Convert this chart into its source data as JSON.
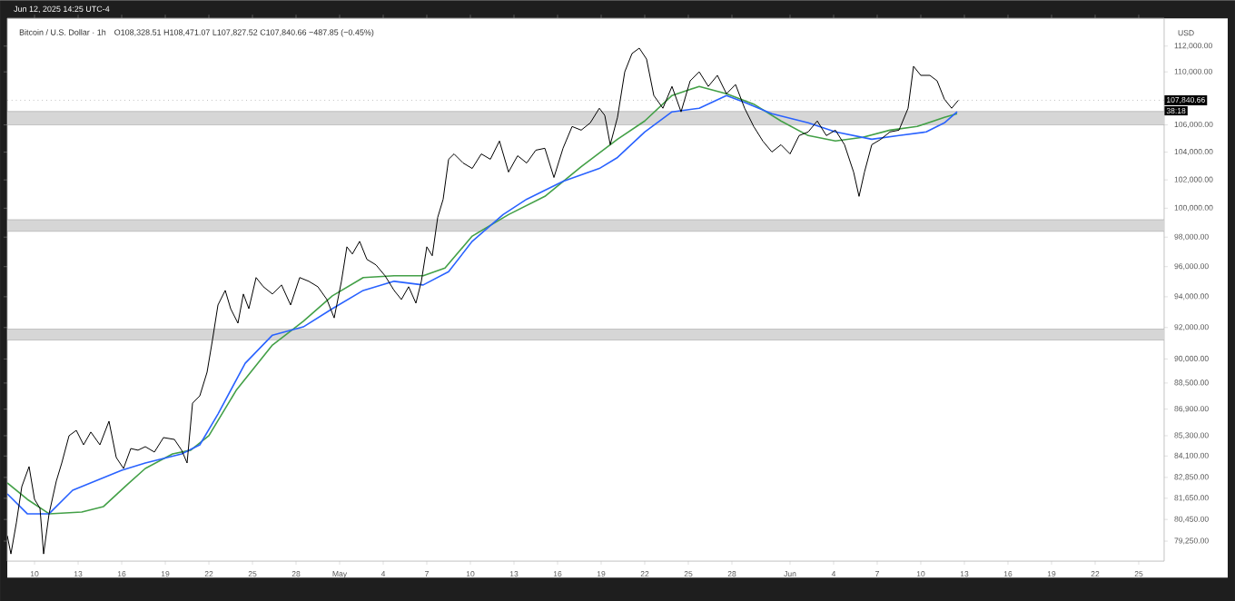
{
  "chart_data": {
    "type": "line",
    "title": "Bitcoin / U.S. Dollar · 1h",
    "subtitle": "O108,328.51 H108,471.07 L107,827.52 C107,840.66 −487.85 (−0.45%)",
    "ylabel": "USD",
    "annotations": [
      "Jun 12, 2025 14:25 UTC-4",
      "38:18"
    ],
    "log": "y",
    "marker": "none",
    "line_style": "solid",
    "xlim": [
      "2025-04-08T03:00",
      "2025-06-26T18:00"
    ],
    "ylim": [
      78150,
      114200
    ],
    "xticks": [
      {
        "value": "2025-04-10",
        "label": "10"
      },
      {
        "value": "2025-04-13",
        "label": "13"
      },
      {
        "value": "2025-04-16",
        "label": "16"
      },
      {
        "value": "2025-04-19",
        "label": "19"
      },
      {
        "value": "2025-04-22",
        "label": "22"
      },
      {
        "value": "2025-04-25",
        "label": "25"
      },
      {
        "value": "2025-04-28",
        "label": "28"
      },
      {
        "value": "2025-05-01",
        "label": "May"
      },
      {
        "value": "2025-05-04",
        "label": "4"
      },
      {
        "value": "2025-05-07",
        "label": "7"
      },
      {
        "value": "2025-05-10",
        "label": "10"
      },
      {
        "value": "2025-05-13",
        "label": "13"
      },
      {
        "value": "2025-05-16",
        "label": "16"
      },
      {
        "value": "2025-05-19",
        "label": "19"
      },
      {
        "value": "2025-05-22",
        "label": "22"
      },
      {
        "value": "2025-05-25",
        "label": "25"
      },
      {
        "value": "2025-05-28",
        "label": "28"
      },
      {
        "value": "2025-06-01",
        "label": "Jun"
      },
      {
        "value": "2025-06-04",
        "label": "4"
      },
      {
        "value": "2025-06-07",
        "label": "7"
      },
      {
        "value": "2025-06-10",
        "label": "10"
      },
      {
        "value": "2025-06-13",
        "label": "13"
      },
      {
        "value": "2025-06-16",
        "label": "16"
      },
      {
        "value": "2025-06-19",
        "label": "19"
      },
      {
        "value": "2025-06-22",
        "label": "22"
      },
      {
        "value": "2025-06-25",
        "label": "25"
      }
    ],
    "yticks": [
      {
        "value": 79250,
        "label": "79,250.00"
      },
      {
        "value": 80450,
        "label": "80,450.00"
      },
      {
        "value": 81650,
        "label": "81,650.00"
      },
      {
        "value": 82850,
        "label": "82,850.00"
      },
      {
        "value": 84100,
        "label": "84,100.00"
      },
      {
        "value": 85300,
        "label": "85,300.00"
      },
      {
        "value": 86900,
        "label": "86,900.00"
      },
      {
        "value": 88500,
        "label": "88,500.00"
      },
      {
        "value": 90000,
        "label": "90,000.00"
      },
      {
        "value": 92000,
        "label": "92,000.00"
      },
      {
        "value": 94000,
        "label": "94,000.00"
      },
      {
        "value": 96000,
        "label": "96,000.00"
      },
      {
        "value": 98000,
        "label": "98,000.00"
      },
      {
        "value": 100000,
        "label": "100,000.00"
      },
      {
        "value": 102000,
        "label": "102,000.00"
      },
      {
        "value": 104000,
        "label": "104,000.00"
      },
      {
        "value": 106000,
        "label": "106,000.00"
      },
      {
        "value": 110000,
        "label": "110,000.00"
      },
      {
        "value": 112000,
        "label": "112,000.00"
      }
    ],
    "bands": [
      {
        "axis": "y",
        "from": 106000,
        "to": 107000,
        "color": "#d6d6d6"
      },
      {
        "axis": "y",
        "from": 98400,
        "to": 99200,
        "color": "#d6d6d6"
      },
      {
        "axis": "y",
        "from": 91200,
        "to": 91900,
        "color": "#d6d6d6"
      }
    ],
    "ref_lines": [
      {
        "axis": "y",
        "value": 107840.66,
        "label": "107,840.66",
        "color": "#9e9e9e",
        "line_style": "dotted"
      }
    ],
    "series": [
      {
        "color": "#43a047",
        "x": [
          "2025-04-08T03:00",
          "2025-04-09T12:00",
          "2025-04-11T00:00",
          "2025-04-13T06:00",
          "2025-04-14T18:00",
          "2025-04-16T09:00",
          "2025-04-17T15:00",
          "2025-04-19T12:00",
          "2025-04-20T18:00",
          "2025-04-22T00:00",
          "2025-04-23T21:00",
          "2025-04-26T09:00",
          "2025-04-28T12:00",
          "2025-04-30T12:00",
          "2025-05-02T15:00",
          "2025-05-04T18:00",
          "2025-05-06T18:00",
          "2025-05-08T06:00",
          "2025-05-10T03:00",
          "2025-05-12T15:00",
          "2025-05-15T03:00",
          "2025-05-17T15:00",
          "2025-05-20T03:00",
          "2025-05-22T00:00",
          "2025-05-23T21:00",
          "2025-05-25T18:00",
          "2025-05-27T15:00",
          "2025-05-29T12:00",
          "2025-05-31T09:00",
          "2025-06-02T06:00",
          "2025-06-04T03:00",
          "2025-06-06T00:00",
          "2025-06-07T21:00",
          "2025-06-09T18:00",
          "2025-06-11T15:00",
          "2025-06-12T12:00"
        ],
        "values": [
          82530,
          81590,
          80770,
          80870,
          81180,
          82430,
          83370,
          84220,
          84440,
          85300,
          88040,
          90880,
          92400,
          94060,
          95270,
          95390,
          95390,
          95900,
          98070,
          99560,
          100830,
          102950,
          104940,
          106290,
          108200,
          108890,
          108330,
          107550,
          106290,
          105210,
          104810,
          105080,
          105610,
          105880,
          106560,
          106830
        ]
      },
      {
        "color": "#2962ff",
        "x": [
          "2025-04-08T03:00",
          "2025-04-09T12:00",
          "2025-04-11T00:00",
          "2025-04-12T15:00",
          "2025-04-16T00:00",
          "2025-04-17T15:00",
          "2025-04-20T03:00",
          "2025-04-21T09:00",
          "2025-04-22T15:00",
          "2025-04-24T12:00",
          "2025-04-26T09:00",
          "2025-04-28T12:00",
          "2025-04-30T12:00",
          "2025-05-02T15:00",
          "2025-05-04T18:00",
          "2025-05-06T18:00",
          "2025-05-08T12:00",
          "2025-05-10T03:00",
          "2025-05-12T06:00",
          "2025-05-13T21:00",
          "2025-05-16T09:00",
          "2025-05-18T21:00",
          "2025-05-20T03:00",
          "2025-05-22T00:00",
          "2025-05-23T21:00",
          "2025-05-25T18:00",
          "2025-05-27T15:00",
          "2025-05-28T21:00",
          "2025-05-30T18:00",
          "2025-06-02T06:00",
          "2025-06-04T03:00",
          "2025-06-06T15:00",
          "2025-06-08T12:00",
          "2025-06-10T09:00",
          "2025-06-11T15:00",
          "2025-06-12T12:00"
        ],
        "values": [
          81900,
          80770,
          80770,
          82110,
          83270,
          83690,
          84220,
          84760,
          86600,
          89730,
          91510,
          92040,
          93220,
          94420,
          95020,
          94780,
          95660,
          97710,
          99560,
          100630,
          101900,
          102820,
          103610,
          105480,
          106970,
          107240,
          108200,
          107680,
          106830,
          106150,
          105480,
          104940,
          105210,
          105480,
          106150,
          106970
        ]
      },
      {
        "color": "#000000",
        "x": [
          "2025-04-08T03:00",
          "2025-04-08T09:00",
          "2025-04-08T18:00",
          "2025-04-09T03:00",
          "2025-04-09T15:00",
          "2025-04-10T00:00",
          "2025-04-10T09:00",
          "2025-04-10T15:00",
          "2025-04-11T00:00",
          "2025-04-11T12:00",
          "2025-04-11T21:00",
          "2025-04-12T09:00",
          "2025-04-12T21:00",
          "2025-04-13T09:00",
          "2025-04-13T21:00",
          "2025-04-14T12:00",
          "2025-04-15T03:00",
          "2025-04-15T15:00",
          "2025-04-16T03:00",
          "2025-04-16T15:00",
          "2025-04-17T03:00",
          "2025-04-17T15:00",
          "2025-04-18T06:00",
          "2025-04-18T21:00",
          "2025-04-19T15:00",
          "2025-04-20T03:00",
          "2025-04-20T12:00",
          "2025-04-20T21:00",
          "2025-04-21T09:00",
          "2025-04-21T21:00",
          "2025-04-22T06:00",
          "2025-04-22T15:00",
          "2025-04-23T03:00",
          "2025-04-23T12:00",
          "2025-04-24T00:00",
          "2025-04-24T09:00",
          "2025-04-24T18:00",
          "2025-04-25T06:00",
          "2025-04-25T18:00",
          "2025-04-26T09:00",
          "2025-04-27T00:00",
          "2025-04-27T15:00",
          "2025-04-28T06:00",
          "2025-04-28T21:00",
          "2025-04-29T12:00",
          "2025-04-30T03:00",
          "2025-04-30T15:00",
          "2025-05-01T03:00",
          "2025-05-01T12:00",
          "2025-05-01T21:00",
          "2025-05-02T09:00",
          "2025-05-02T21:00",
          "2025-05-03T12:00",
          "2025-05-04T03:00",
          "2025-05-04T18:00",
          "2025-05-05T06:00",
          "2025-05-05T18:00",
          "2025-05-06T06:00",
          "2025-05-06T15:00",
          "2025-05-07T00:00",
          "2025-05-07T09:00",
          "2025-05-07T18:00",
          "2025-05-08T03:00",
          "2025-05-08T12:00",
          "2025-05-08T21:00",
          "2025-05-09T12:00",
          "2025-05-10T03:00",
          "2025-05-10T18:00",
          "2025-05-11T09:00",
          "2025-05-12T00:00",
          "2025-05-12T15:00",
          "2025-05-13T06:00",
          "2025-05-13T21:00",
          "2025-05-14T12:00",
          "2025-05-15T03:00",
          "2025-05-15T18:00",
          "2025-05-16T09:00",
          "2025-05-17T00:00",
          "2025-05-17T15:00",
          "2025-05-18T06:00",
          "2025-05-18T21:00",
          "2025-05-19T06:00",
          "2025-05-19T15:00",
          "2025-05-20T03:00",
          "2025-05-20T15:00",
          "2025-05-21T03:00",
          "2025-05-21T15:00",
          "2025-05-22T03:00",
          "2025-05-22T15:00",
          "2025-05-23T06:00",
          "2025-05-23T21:00",
          "2025-05-24T12:00",
          "2025-05-25T03:00",
          "2025-05-25T18:00",
          "2025-05-26T09:00",
          "2025-05-27T00:00",
          "2025-05-27T15:00",
          "2025-05-28T06:00",
          "2025-05-28T21:00",
          "2025-05-29T12:00",
          "2025-05-30T03:00",
          "2025-05-30T18:00",
          "2025-05-31T09:00",
          "2025-06-01T00:00",
          "2025-06-01T15:00",
          "2025-06-02T06:00",
          "2025-06-02T21:00",
          "2025-06-03T12:00",
          "2025-06-04T03:00",
          "2025-06-04T18:00",
          "2025-06-05T09:00",
          "2025-06-05T18:00",
          "2025-06-06T03:00",
          "2025-06-06T15:00",
          "2025-06-07T06:00",
          "2025-06-07T21:00",
          "2025-06-08T12:00",
          "2025-06-09T03:00",
          "2025-06-09T12:00",
          "2025-06-10T00:00",
          "2025-06-10T15:00",
          "2025-06-11T03:00",
          "2025-06-11T15:00",
          "2025-06-12T03:00",
          "2025-06-12T14:00"
        ],
        "values": [
          79550,
          78550,
          80260,
          82320,
          83480,
          81590,
          81080,
          78550,
          80770,
          82640,
          83690,
          85300,
          85620,
          84760,
          85520,
          84760,
          86170,
          84010,
          83370,
          84540,
          84440,
          84650,
          84330,
          85190,
          85080,
          84440,
          83690,
          87260,
          87710,
          89170,
          91220,
          93460,
          94420,
          93220,
          92280,
          94180,
          93220,
          95270,
          94660,
          94180,
          94780,
          93460,
          95270,
          95020,
          94660,
          93820,
          92620,
          95020,
          97340,
          96850,
          97710,
          96490,
          96120,
          95390,
          94420,
          93820,
          94660,
          93580,
          95020,
          97340,
          96730,
          99360,
          100630,
          103480,
          103870,
          103210,
          102820,
          103870,
          103480,
          104810,
          102560,
          103740,
          103210,
          104140,
          104280,
          102170,
          104280,
          105880,
          105610,
          106150,
          107240,
          106700,
          104540,
          106560,
          110000,
          111420,
          111840,
          110990,
          108200,
          107240,
          108890,
          106970,
          109310,
          110000,
          108890,
          109730,
          108330,
          109030,
          107240,
          105880,
          104810,
          104010,
          104540,
          103870,
          105210,
          105480,
          106290,
          105210,
          105610,
          104540,
          102560,
          100830,
          102560,
          104540,
          104940,
          105480,
          105610,
          107240,
          110430,
          109730,
          109730,
          109310,
          107920,
          107240,
          107840
        ]
      }
    ]
  }
}
